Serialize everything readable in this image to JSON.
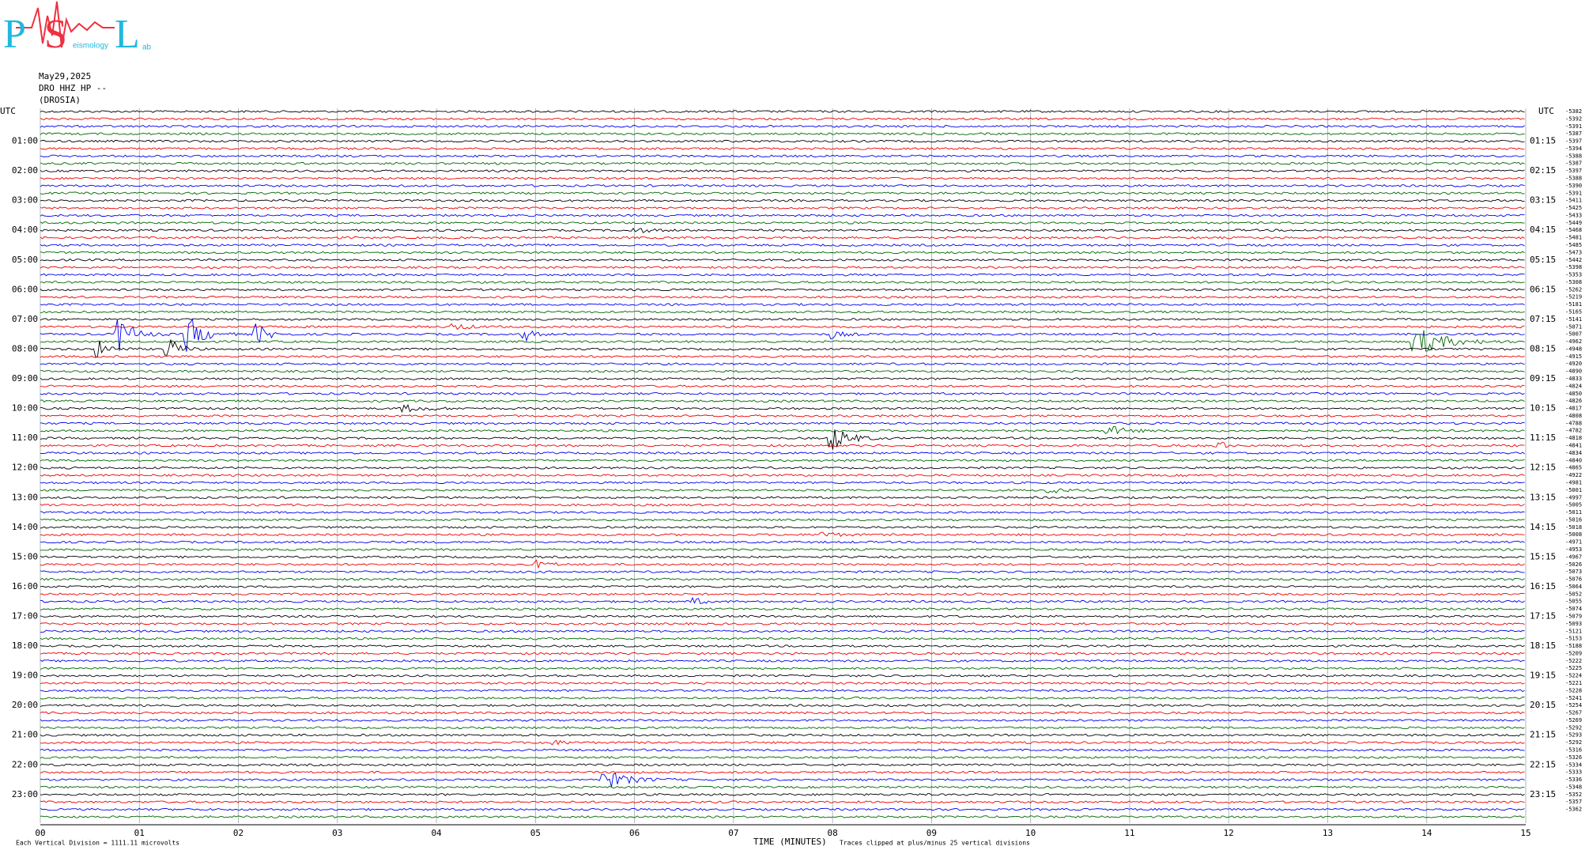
{
  "logo": {
    "letters": [
      "P",
      "S",
      "L"
    ],
    "words": [
      "eismology",
      "ab"
    ]
  },
  "header": {
    "date": "May29,2025",
    "channel": "DRO HHZ HP --",
    "station": "(DROSIA)"
  },
  "left_labels": [
    "UTC",
    "01:00",
    "02:00",
    "03:00",
    "04:00",
    "05:00",
    "06:00",
    "07:00",
    "08:00",
    "09:00",
    "10:00",
    "11:00",
    "12:00",
    "13:00",
    "14:00",
    "15:00",
    "16:00",
    "17:00",
    "18:00",
    "19:00",
    "20:00",
    "21:00",
    "22:00",
    "23:00"
  ],
  "right_labels": [
    "UTC",
    "01:15",
    "02:15",
    "03:15",
    "04:15",
    "05:15",
    "06:15",
    "07:15",
    "08:15",
    "09:15",
    "10:15",
    "11:15",
    "12:15",
    "13:15",
    "14:15",
    "15:15",
    "16:15",
    "17:15",
    "18:15",
    "19:15",
    "20:15",
    "21:15",
    "22:15",
    "23:15"
  ],
  "offsets": [
    -5382,
    -5392,
    -5391,
    -5387,
    -5397,
    -5394,
    -5388,
    -5387,
    -5397,
    -5388,
    -5390,
    -5391,
    -5411,
    -5425,
    -5433,
    -5449,
    -5468,
    -5481,
    -5485,
    -5473,
    -5442,
    -5398,
    -5353,
    -5308,
    -5262,
    -5219,
    -5181,
    -5165,
    -5141,
    -5071,
    -5007,
    -4962,
    -4948,
    -4915,
    -4920,
    -4890,
    -4833,
    -4824,
    -4850,
    -4826,
    -4817,
    -4808,
    -4788,
    -4782,
    -4818,
    -4841,
    -4834,
    -4840,
    -4865,
    -4922,
    -4981,
    -5001,
    -4997,
    -5005,
    -5011,
    -5016,
    -5018,
    -5008,
    -4971,
    -4953,
    -4967,
    -5026,
    -5073,
    -5076,
    -5064,
    -5052,
    -5055,
    -5074,
    -5079,
    -5093,
    -5121,
    -5153,
    -5188,
    -5209,
    -5222,
    -5225,
    -5224,
    -5221,
    -5228,
    -5241,
    -5254,
    -5267,
    -5269,
    -5292,
    -5293,
    -5292,
    -5316,
    -5326,
    -5334,
    -5333,
    -5336,
    -5348,
    -5352,
    -5357,
    -5362
  ],
  "x_ticks": [
    "00",
    "01",
    "02",
    "03",
    "04",
    "05",
    "06",
    "07",
    "08",
    "09",
    "10",
    "11",
    "12",
    "13",
    "14",
    "15"
  ],
  "footer": {
    "scale": "Each Vertical Division = 1111.11 microvolts",
    "axis_title": "TIME (MINUTES)",
    "clip_note": "Traces clipped at plus/minus 25 vertical divisions"
  }
}
